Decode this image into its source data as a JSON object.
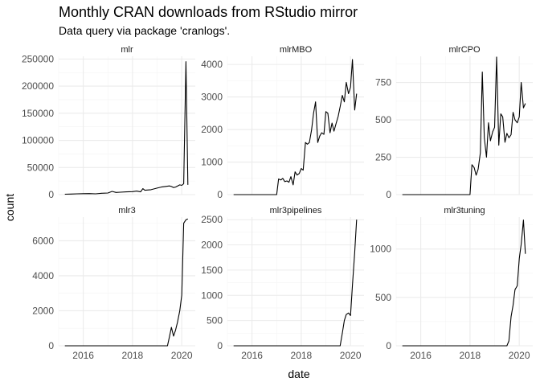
{
  "title": "Monthly CRAN downloads from RStudio mirror",
  "subtitle": "Data query via package 'cranlogs'.",
  "chart_data": {
    "type": "line",
    "xlabel": "date",
    "ylabel": "count",
    "facet_layout": "3 columns x 2 rows, free y scales, shared x",
    "grid": true,
    "legend": "none",
    "xlim": [
      2015.0,
      2020.55
    ],
    "x_ticks": [
      2016,
      2018,
      2020
    ],
    "panels": [
      {
        "name": "mlr",
        "ylim": [
          0,
          255000
        ],
        "y_ticks": [
          0,
          50000,
          100000,
          150000,
          200000,
          250000
        ],
        "y_tick_labels": [
          "0",
          "50000",
          "100000",
          "150000",
          "200000",
          "250000"
        ],
        "x": [
          2015.25,
          2015.5,
          2015.75,
          2016.0,
          2016.25,
          2016.5,
          2016.75,
          2017.0,
          2017.17,
          2017.33,
          2017.5,
          2017.75,
          2018.0,
          2018.17,
          2018.33,
          2018.42,
          2018.5,
          2018.75,
          2019.0,
          2019.17,
          2019.33,
          2019.5,
          2019.58,
          2019.67,
          2019.75,
          2019.92,
          2020.0,
          2020.08,
          2020.17,
          2020.25
        ],
        "y": [
          800,
          1000,
          1500,
          1800,
          2000,
          1500,
          2500,
          3000,
          6000,
          4000,
          4500,
          5000,
          5500,
          6500,
          5000,
          11000,
          8000,
          9000,
          12000,
          14000,
          15000,
          16000,
          15000,
          13000,
          14000,
          18000,
          17000,
          20000,
          245000,
          18000
        ]
      },
      {
        "name": "mlrMBO",
        "ylim": [
          0,
          4250
        ],
        "y_ticks": [
          0,
          1000,
          2000,
          3000,
          4000
        ],
        "y_tick_labels": [
          "0",
          "1000",
          "2000",
          "3000",
          "4000"
        ],
        "x": [
          2015.25,
          2015.5,
          2016.0,
          2016.5,
          2017.0,
          2017.08,
          2017.17,
          2017.25,
          2017.33,
          2017.42,
          2017.5,
          2017.58,
          2017.67,
          2017.75,
          2017.83,
          2017.92,
          2018.0,
          2018.08,
          2018.17,
          2018.25,
          2018.33,
          2018.42,
          2018.5,
          2018.58,
          2018.67,
          2018.75,
          2018.83,
          2018.92,
          2019.0,
          2019.08,
          2019.17,
          2019.25,
          2019.33,
          2019.42,
          2019.5,
          2019.58,
          2019.67,
          2019.75,
          2019.83,
          2019.92,
          2020.0,
          2020.08,
          2020.17,
          2020.25
        ],
        "y": [
          0,
          0,
          0,
          0,
          0,
          480,
          450,
          500,
          400,
          420,
          380,
          550,
          300,
          700,
          600,
          650,
          800,
          750,
          1600,
          1550,
          1600,
          2000,
          2500,
          2850,
          1600,
          1800,
          1900,
          1850,
          2550,
          2500,
          1900,
          2200,
          1950,
          2200,
          2400,
          2700,
          3050,
          2850,
          3450,
          3100,
          3300,
          4150,
          2600,
          3100
        ]
      },
      {
        "name": "mlrCPO",
        "ylim": [
          0,
          925
        ],
        "y_ticks": [
          0,
          250,
          500,
          750
        ],
        "y_tick_labels": [
          "0",
          "250",
          "500",
          "750"
        ],
        "x": [
          2015.25,
          2016.0,
          2017.0,
          2017.75,
          2018.0,
          2018.08,
          2018.17,
          2018.25,
          2018.33,
          2018.42,
          2018.5,
          2018.58,
          2018.67,
          2018.75,
          2018.83,
          2018.92,
          2019.0,
          2019.08,
          2019.17,
          2019.25,
          2019.33,
          2019.42,
          2019.5,
          2019.58,
          2019.67,
          2019.75,
          2019.83,
          2019.92,
          2020.0,
          2020.08,
          2020.17,
          2020.25
        ],
        "y": [
          0,
          0,
          0,
          0,
          0,
          200,
          180,
          130,
          170,
          280,
          820,
          380,
          250,
          480,
          360,
          420,
          450,
          920,
          330,
          540,
          520,
          350,
          410,
          380,
          400,
          550,
          500,
          480,
          520,
          750,
          580,
          610
        ]
      },
      {
        "name": "mlr3",
        "ylim": [
          0,
          7350
        ],
        "y_ticks": [
          0,
          2000,
          4000,
          6000
        ],
        "y_tick_labels": [
          "0",
          "2000",
          "4000",
          "6000"
        ],
        "x": [
          2015.25,
          2016.0,
          2017.0,
          2018.0,
          2019.0,
          2019.42,
          2019.5,
          2019.58,
          2019.67,
          2019.75,
          2019.83,
          2019.92,
          2020.0,
          2020.08,
          2020.17,
          2020.25
        ],
        "y": [
          0,
          0,
          0,
          0,
          0,
          0,
          500,
          1050,
          550,
          900,
          1350,
          2000,
          2900,
          7000,
          7200,
          7250
        ]
      },
      {
        "name": "mlr3pipelines",
        "ylim": [
          0,
          2550
        ],
        "y_ticks": [
          0,
          500,
          1000,
          1500,
          2000,
          2500
        ],
        "y_tick_labels": [
          "0",
          "500",
          "1000",
          "1500",
          "2000",
          "2500"
        ],
        "x": [
          2015.25,
          2016.0,
          2017.0,
          2018.0,
          2019.0,
          2019.58,
          2019.67,
          2019.75,
          2019.83,
          2019.92,
          2020.0,
          2020.08,
          2020.17,
          2020.25
        ],
        "y": [
          0,
          0,
          0,
          0,
          0,
          0,
          250,
          500,
          620,
          650,
          600,
          1200,
          1850,
          2500
        ]
      },
      {
        "name": "mlr3tuning",
        "ylim": [
          0,
          1330
        ],
        "y_ticks": [
          0,
          500,
          1000
        ],
        "y_tick_labels": [
          "0",
          "500",
          "1000"
        ],
        "x": [
          2015.25,
          2016.0,
          2017.0,
          2018.0,
          2019.0,
          2019.5,
          2019.58,
          2019.67,
          2019.75,
          2019.83,
          2019.92,
          2020.0,
          2020.08,
          2020.17,
          2020.25
        ],
        "y": [
          0,
          0,
          0,
          0,
          0,
          0,
          50,
          300,
          420,
          580,
          620,
          900,
          1050,
          1300,
          950
        ]
      }
    ]
  }
}
